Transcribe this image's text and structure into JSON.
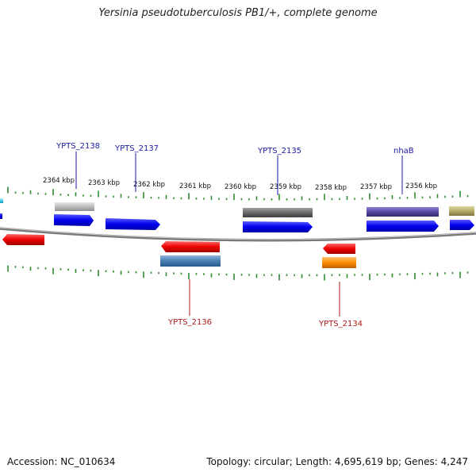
{
  "title": "Yersinia pseudotuberculosis PB1/+, complete genome",
  "footer": {
    "accession": "Accession: NC_010634",
    "stats": "Topology: circular; Length: 4,695,619 bp; Genes: 4,247"
  },
  "colors": {
    "backbone": "#8a8a8a",
    "tick": "#2e8b2e",
    "label_forward": "#1a1aa6",
    "label_reverse": "#b01818"
  },
  "kbp_labels": [
    "2364 kbp",
    "2363 kbp",
    "2362 kbp",
    "2361 kbp",
    "2360 kbp",
    "2359 kbp",
    "2358 kbp",
    "2357 kbp",
    "2356 kbp"
  ],
  "gene_labels": {
    "forward": [
      "YPTS_2138",
      "YPTS_2137",
      "YPTS_2135",
      "nhaB"
    ],
    "reverse": [
      "YPTS_2136",
      "YPTS_2134"
    ]
  }
}
